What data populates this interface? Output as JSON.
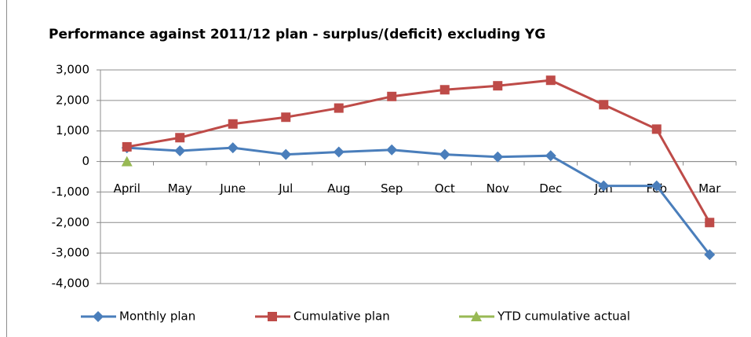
{
  "chart_data": {
    "type": "line",
    "title": "Performance against 2011/12  plan - surplus/(deficit) excluding YG",
    "categories": [
      "April",
      "May",
      "June",
      "Jul",
      "Aug",
      "Sep",
      "Oct",
      "Nov",
      "Dec",
      "Jan",
      "Feb",
      "Mar"
    ],
    "series": [
      {
        "name": "Monthly plan",
        "color": "#4a7ebb",
        "marker": "diamond",
        "values": [
          450,
          350,
          450,
          230,
          310,
          380,
          230,
          150,
          190,
          -800,
          -800,
          -3050
        ]
      },
      {
        "name": "Cumulative plan",
        "color": "#be4b48",
        "marker": "square",
        "values": [
          480,
          780,
          1230,
          1450,
          1750,
          2130,
          2350,
          2480,
          2660,
          1860,
          1060,
          -2000
        ]
      },
      {
        "name": "YTD cumulative actual",
        "color": "#98b954",
        "marker": "triangle",
        "values": [
          0,
          null,
          null,
          null,
          null,
          null,
          null,
          null,
          null,
          null,
          null,
          null
        ]
      }
    ],
    "ylim": [
      -4000,
      3000
    ],
    "yticks": [
      {
        "value": -4000,
        "label": "-4,000"
      },
      {
        "value": -3000,
        "label": "-3,000"
      },
      {
        "value": -2000,
        "label": "-2,000"
      },
      {
        "value": -1000,
        "label": "-1,000"
      },
      0,
      {
        "value": 1000,
        "label": "1,000"
      },
      {
        "value": 2000,
        "label": "2,000"
      },
      {
        "value": 3000,
        "label": "3,000"
      }
    ],
    "grid": true,
    "legend": "bottom"
  }
}
